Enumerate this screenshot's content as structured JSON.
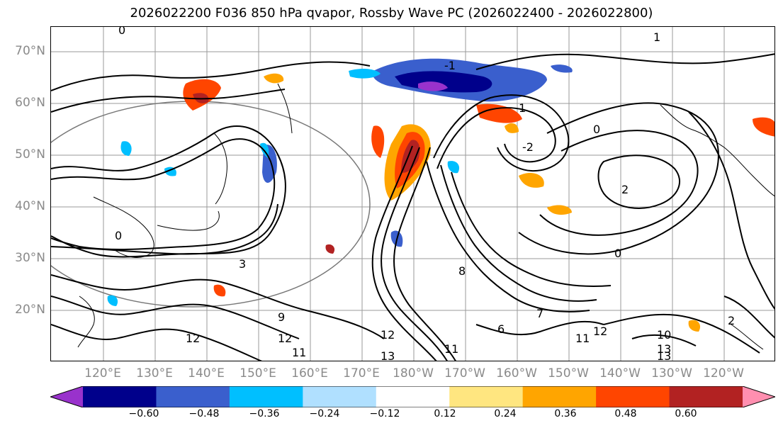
{
  "title": "2026022200 F036 850 hPa qvapor, Rossby Wave PC (2026022400 - 2026022800)",
  "lat_labels": [
    "70°N",
    "60°N",
    "50°N",
    "40°N",
    "30°N",
    "20°N"
  ],
  "lon_labels": [
    "120°E",
    "130°E",
    "140°E",
    "150°E",
    "160°E",
    "170°E",
    "180°W",
    "170°W",
    "160°W",
    "150°W",
    "140°W",
    "130°W",
    "120°W"
  ],
  "contour_labels": [
    "1",
    "-1",
    "1",
    "0",
    "2",
    "-2",
    "0",
    "0",
    "0",
    "3",
    "9",
    "12",
    "13",
    "12",
    "11",
    "13",
    "11",
    "12",
    "10",
    "13",
    "2",
    "6",
    "7",
    "8",
    "12",
    "11"
  ],
  "colorbar": {
    "colors": [
      "#9932cc",
      "#00008b",
      "#3a5fcd",
      "#00bfff",
      "#b0e0ff",
      "#ffffff",
      "#ffe680",
      "#ffa500",
      "#ff4500",
      "#b22222",
      "#ff8fb0"
    ],
    "tick_labels": [
      "−0.60",
      "−0.48",
      "−0.36",
      "−0.24",
      "−0.12",
      "0.12",
      "0.24",
      "0.36",
      "0.48",
      "0.60"
    ],
    "tick_values": [
      -0.6,
      -0.48,
      -0.36,
      -0.24,
      -0.12,
      0.12,
      0.24,
      0.36,
      0.48,
      0.6
    ]
  }
}
